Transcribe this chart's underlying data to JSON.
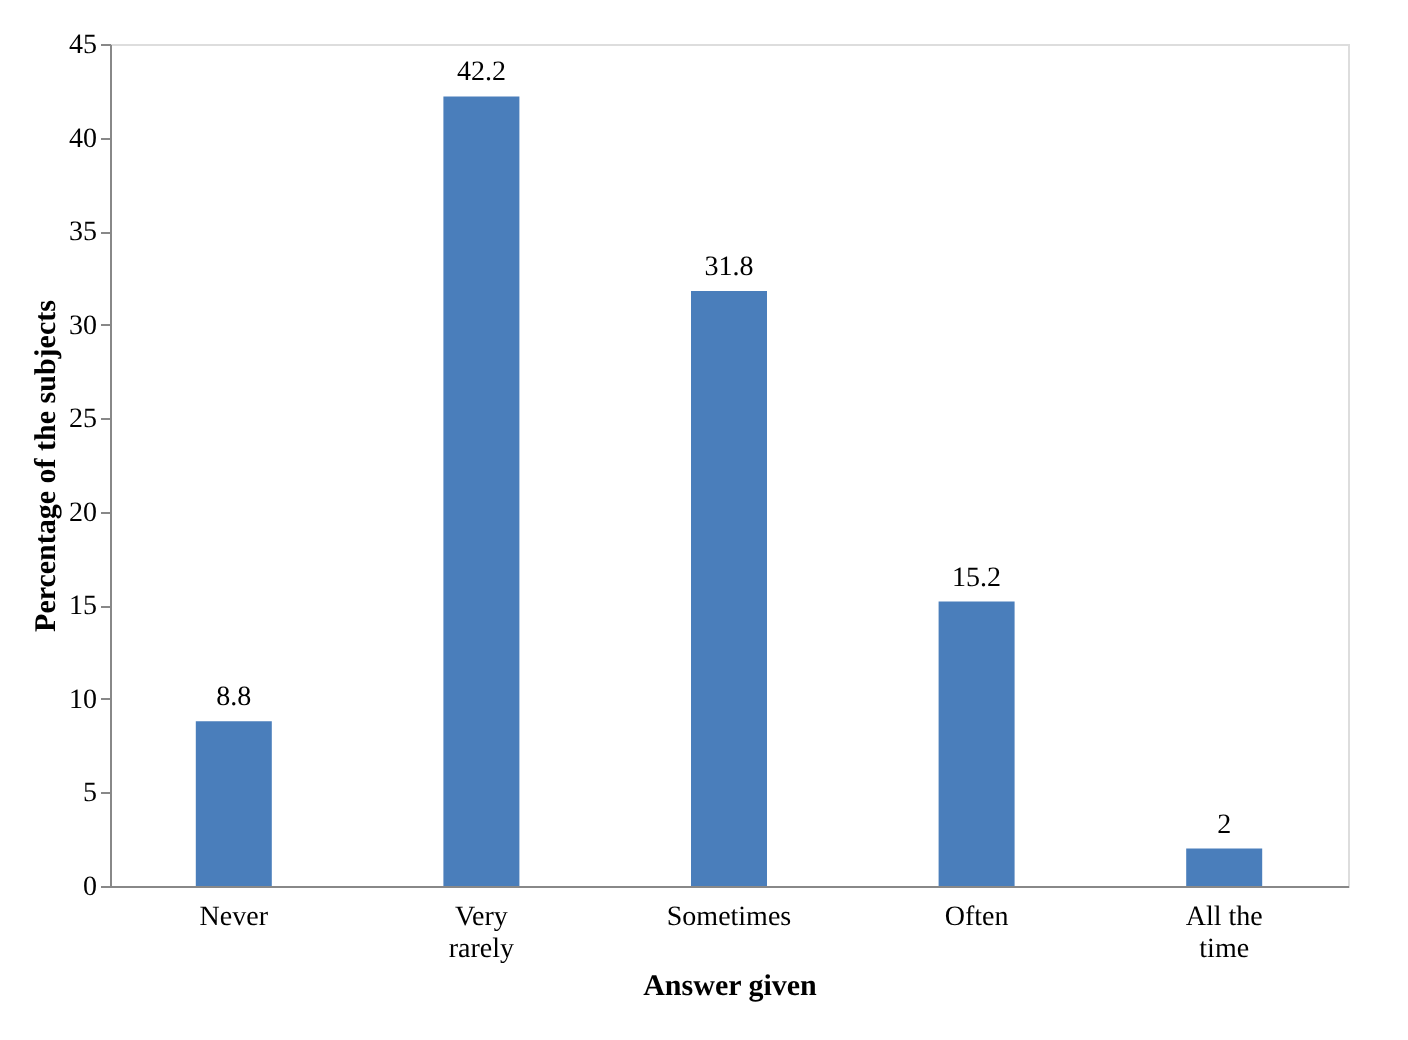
{
  "chart_data": {
    "type": "bar",
    "xlabel": "Answer given",
    "ylabel": "Percentage of the subjects",
    "categories": [
      "Never",
      "Very rarely",
      "Sometimes",
      "Often",
      "All the time"
    ],
    "values": [
      8.8,
      42.2,
      31.8,
      15.2,
      2
    ],
    "color": "#4a7ebb",
    "ylim": [
      0,
      45
    ],
    "yticks": [
      0,
      5,
      10,
      15,
      20,
      25,
      30,
      35,
      40,
      45
    ],
    "grid": false,
    "data_labels": true
  }
}
